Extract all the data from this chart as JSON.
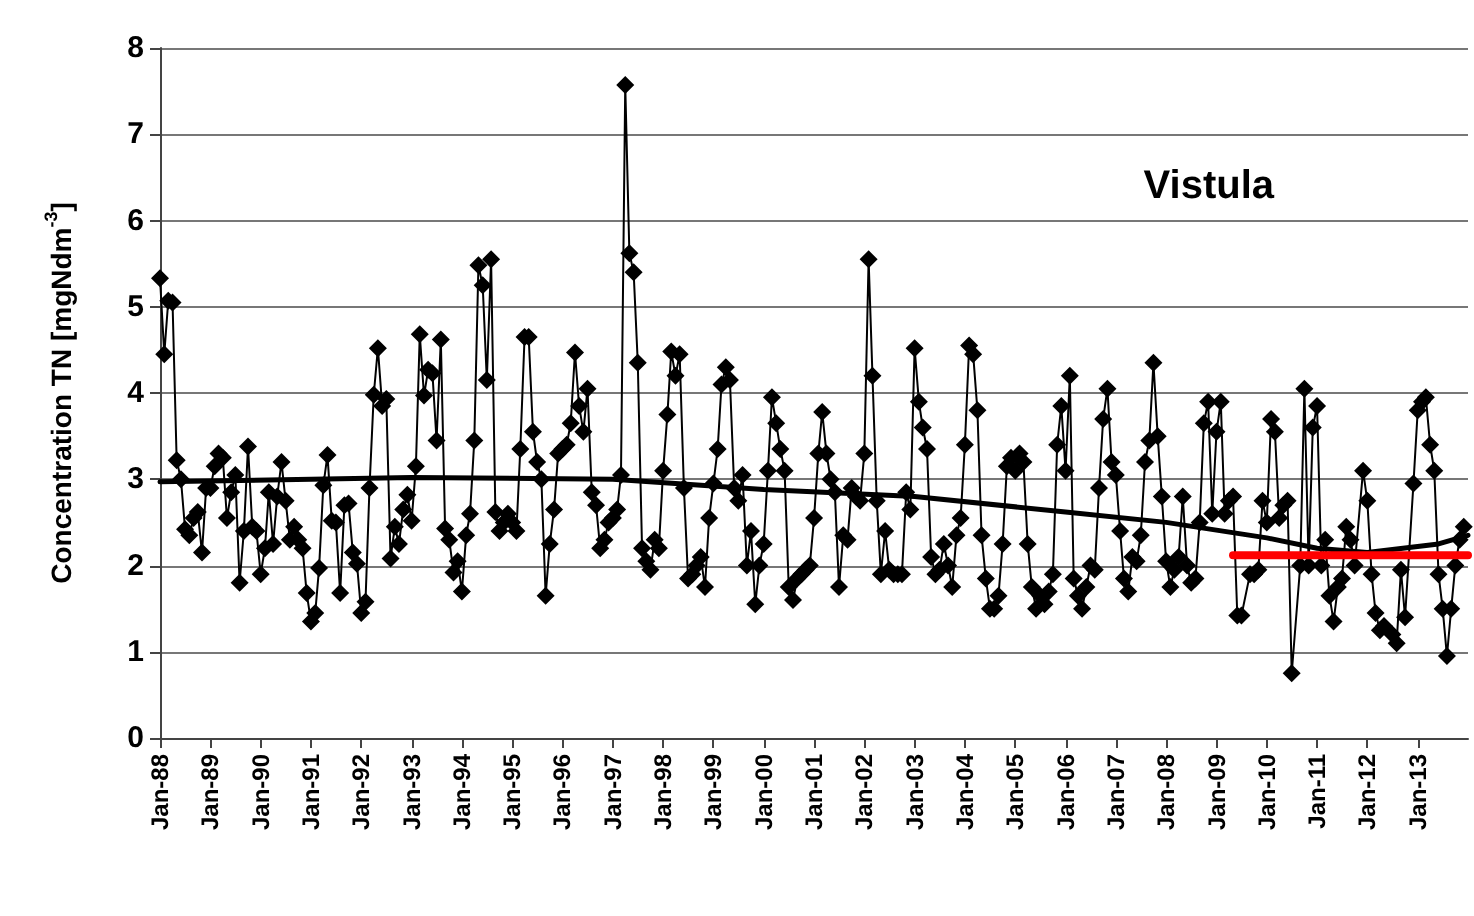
{
  "chart_data": {
    "type": "line",
    "title": "Vistula",
    "ylabel": "Concentration TN [mgNdm$^{-3}$]",
    "xlim": [
      "1988-01",
      "2014-01"
    ],
    "ylim": [
      0,
      8
    ],
    "yticks": [
      0,
      1,
      2,
      3,
      4,
      5,
      6,
      7,
      8
    ],
    "xticks": [
      {
        "value": "1988-01",
        "label": "Jan-88"
      },
      {
        "value": "1989-01",
        "label": "Jan-89"
      },
      {
        "value": "1990-01",
        "label": "Jan-90"
      },
      {
        "value": "1991-01",
        "label": "Jan-91"
      },
      {
        "value": "1992-01",
        "label": "Jan-92"
      },
      {
        "value": "1993-01",
        "label": "Jan-93"
      },
      {
        "value": "1994-01",
        "label": "Jan-94"
      },
      {
        "value": "1995-01",
        "label": "Jan-95"
      },
      {
        "value": "1996-01",
        "label": "Jan-96"
      },
      {
        "value": "1997-01",
        "label": "Jan-97"
      },
      {
        "value": "1998-01",
        "label": "Jan-98"
      },
      {
        "value": "1999-01",
        "label": "Jan-99"
      },
      {
        "value": "2000-01",
        "label": "Jan-00"
      },
      {
        "value": "2001-01",
        "label": "Jan-01"
      },
      {
        "value": "2002-01",
        "label": "Jan-02"
      },
      {
        "value": "2003-01",
        "label": "Jan-03"
      },
      {
        "value": "2004-01",
        "label": "Jan-04"
      },
      {
        "value": "2005-01",
        "label": "Jan-05"
      },
      {
        "value": "2006-01",
        "label": "Jan-06"
      },
      {
        "value": "2007-01",
        "label": "Jan-07"
      },
      {
        "value": "2008-01",
        "label": "Jan-08"
      },
      {
        "value": "2009-01",
        "label": "Jan-09"
      },
      {
        "value": "2010-01",
        "label": "Jan-10"
      },
      {
        "value": "2011-01",
        "label": "Jan-11"
      },
      {
        "value": "2012-01",
        "label": "Jan-12"
      },
      {
        "value": "2013-01",
        "label": "Jan-13"
      }
    ],
    "grid": "y",
    "marker": "diamond",
    "line_style": "solid",
    "series": [
      {
        "color": "#000000",
        "x": [
          "1988-01",
          "1988-02",
          "1988-03",
          "1988-04",
          "1988-05",
          "1988-06",
          "1988-07",
          "1988-08",
          "1988-09",
          "1988-10",
          "1988-11",
          "1988-12",
          "1989-01",
          "1989-02",
          "1989-03",
          "1989-04",
          "1989-05",
          "1989-06",
          "1989-07",
          "1989-08",
          "1989-09",
          "1989-10",
          "1989-11",
          "1989-12",
          "1990-01",
          "1990-02",
          "1990-03",
          "1990-04",
          "1990-05",
          "1990-06",
          "1990-07",
          "1990-08",
          "1990-09",
          "1990-10",
          "1990-11",
          "1990-12",
          "1991-01",
          "1991-02",
          "1991-03",
          "1991-04",
          "1991-05",
          "1991-06",
          "1991-07",
          "1991-08",
          "1991-09",
          "1991-10",
          "1991-11",
          "1991-12",
          "1992-01",
          "1992-02",
          "1992-03",
          "1992-04",
          "1992-05",
          "1992-06",
          "1992-07",
          "1992-08",
          "1992-09",
          "1992-10",
          "1992-11",
          "1992-12",
          "1993-01",
          "1993-02",
          "1993-03",
          "1993-04",
          "1993-05",
          "1993-06",
          "1993-07",
          "1993-08",
          "1993-09",
          "1993-10",
          "1993-11",
          "1993-12",
          "1994-01",
          "1994-02",
          "1994-03",
          "1994-04",
          "1994-05",
          "1994-06",
          "1994-07",
          "1994-08",
          "1994-09",
          "1994-10",
          "1994-11",
          "1994-12",
          "1995-01",
          "1995-02",
          "1995-03",
          "1995-04",
          "1995-05",
          "1995-06",
          "1995-07",
          "1995-08",
          "1995-09",
          "1995-10",
          "1995-11",
          "1995-12",
          "1996-01",
          "1996-02",
          "1996-03",
          "1996-04",
          "1996-05",
          "1996-06",
          "1996-07",
          "1996-08",
          "1996-09",
          "1996-10",
          "1996-11",
          "1996-12",
          "1997-01",
          "1997-02",
          "1997-03",
          "1997-04",
          "1997-05",
          "1997-06",
          "1997-07",
          "1997-08",
          "1997-09",
          "1997-10",
          "1997-11",
          "1997-12",
          "1998-01",
          "1998-02",
          "1998-03",
          "1998-04",
          "1998-05",
          "1998-06",
          "1998-07",
          "1998-08",
          "1998-09",
          "1998-10",
          "1998-11",
          "1998-12",
          "1999-01",
          "1999-02",
          "1999-03",
          "1999-04",
          "1999-05",
          "1999-06",
          "1999-07",
          "1999-08",
          "1999-09",
          "1999-10",
          "1999-11",
          "1999-12",
          "2000-01",
          "2000-02",
          "2000-03",
          "2000-04",
          "2000-05",
          "2000-06",
          "2000-07",
          "2000-08",
          "2000-09",
          "2000-10",
          "2000-11",
          "2000-12",
          "2001-01",
          "2001-02",
          "2001-03",
          "2001-04",
          "2001-05",
          "2001-06",
          "2001-07",
          "2001-08",
          "2001-09",
          "2001-10",
          "2001-11",
          "2001-12",
          "2002-01",
          "2002-02",
          "2002-03",
          "2002-04",
          "2002-05",
          "2002-06",
          "2002-07",
          "2002-08",
          "2002-09",
          "2002-10",
          "2002-11",
          "2002-12",
          "2003-01",
          "2003-02",
          "2003-03",
          "2003-04",
          "2003-05",
          "2003-06",
          "2003-07",
          "2003-08",
          "2003-09",
          "2003-10",
          "2003-11",
          "2003-12",
          "2004-01",
          "2004-02",
          "2004-03",
          "2004-04",
          "2004-05",
          "2004-06",
          "2004-07",
          "2004-08",
          "2004-09",
          "2004-10",
          "2004-11",
          "2004-12",
          "2005-01",
          "2005-02",
          "2005-03",
          "2005-04",
          "2005-05",
          "2005-06",
          "2005-07",
          "2005-08",
          "2005-09",
          "2005-10",
          "2005-11",
          "2005-12",
          "2006-01",
          "2006-02",
          "2006-03",
          "2006-04",
          "2006-05",
          "2006-06",
          "2006-07",
          "2006-08",
          "2006-09",
          "2006-10",
          "2006-11",
          "2006-12",
          "2007-01",
          "2007-02",
          "2007-03",
          "2007-04",
          "2007-05",
          "2007-06",
          "2007-07",
          "2007-08",
          "2007-09",
          "2007-10",
          "2007-11",
          "2007-12",
          "2008-01",
          "2008-02",
          "2008-03",
          "2008-04",
          "2008-05",
          "2008-06",
          "2008-07",
          "2008-08",
          "2008-09",
          "2008-10",
          "2008-11",
          "2008-12",
          "2009-01",
          "2009-02",
          "2009-03",
          "2009-04",
          "2009-05",
          "2009-06",
          "2009-07",
          "2009-09",
          "2009-10",
          "2009-11",
          "2009-12",
          "2010-01",
          "2010-02",
          "2010-03",
          "2010-04",
          "2010-05",
          "2010-06",
          "2010-07",
          "2010-09",
          "2010-10",
          "2010-11",
          "2010-12",
          "2011-01",
          "2011-02",
          "2011-03",
          "2011-04",
          "2011-05",
          "2011-06",
          "2011-07",
          "2011-08",
          "2011-09",
          "2011-10",
          "2011-12",
          "2012-01",
          "2012-02",
          "2012-03",
          "2012-04",
          "2012-05",
          "2012-07",
          "2012-08",
          "2012-09",
          "2012-10",
          "2012-12",
          "2013-01",
          "2013-02",
          "2013-03",
          "2013-04",
          "2013-05",
          "2013-06",
          "2013-07",
          "2013-08",
          "2013-09",
          "2013-10",
          "2013-11",
          "2013-12"
        ],
        "values": [
          5.33,
          4.45,
          5.07,
          5.05,
          3.22,
          3.0,
          2.42,
          2.35,
          2.55,
          2.62,
          2.15,
          2.9,
          2.9,
          3.15,
          3.3,
          3.25,
          2.55,
          2.85,
          3.05,
          1.8,
          2.4,
          3.38,
          2.45,
          2.4,
          1.9,
          2.2,
          2.85,
          2.25,
          2.8,
          3.2,
          2.75,
          2.3,
          2.45,
          2.3,
          2.2,
          1.68,
          1.35,
          1.45,
          1.97,
          2.93,
          3.28,
          2.52,
          2.5,
          1.68,
          2.7,
          2.72,
          2.15,
          2.02,
          1.45,
          1.58,
          2.9,
          3.98,
          4.52,
          3.85,
          3.93,
          2.08,
          2.45,
          2.25,
          2.65,
          2.82,
          2.52,
          3.15,
          4.68,
          3.97,
          4.27,
          4.23,
          3.45,
          4.62,
          2.43,
          2.3,
          1.92,
          2.05,
          1.7,
          2.35,
          2.6,
          3.45,
          5.48,
          5.25,
          4.15,
          5.55,
          2.62,
          2.4,
          2.5,
          2.6,
          2.5,
          2.4,
          3.35,
          4.65,
          4.65,
          3.55,
          3.2,
          3.0,
          1.65,
          2.25,
          2.65,
          3.3,
          3.35,
          3.4,
          3.65,
          4.47,
          3.85,
          3.55,
          4.05,
          2.85,
          2.7,
          2.2,
          2.3,
          2.5,
          2.55,
          2.65,
          3.05,
          7.57,
          5.62,
          5.4,
          4.35,
          2.2,
          2.05,
          1.95,
          2.3,
          2.2,
          3.1,
          3.75,
          4.48,
          4.2,
          4.45,
          2.9,
          1.85,
          1.9,
          2.0,
          2.1,
          1.75,
          2.55,
          2.95,
          3.35,
          4.1,
          4.3,
          4.15,
          2.9,
          2.75,
          3.05,
          2.0,
          2.4,
          1.55,
          2.0,
          2.25,
          3.1,
          3.95,
          3.65,
          3.35,
          3.1,
          1.75,
          1.6,
          1.85,
          1.9,
          1.95,
          2.0,
          2.55,
          3.3,
          3.78,
          3.3,
          3.0,
          2.85,
          1.75,
          2.35,
          2.3,
          2.9,
          2.8,
          2.75,
          3.3,
          5.55,
          4.2,
          2.75,
          1.9,
          2.4,
          1.95,
          1.9,
          1.9,
          1.9,
          2.85,
          2.65,
          4.52,
          3.9,
          3.6,
          3.35,
          2.1,
          1.9,
          1.95,
          2.25,
          2.0,
          1.75,
          2.35,
          2.55,
          3.4,
          4.55,
          4.45,
          3.8,
          2.35,
          1.85,
          1.5,
          1.5,
          1.65,
          2.25,
          3.15,
          3.25,
          3.1,
          3.3,
          3.2,
          2.25,
          1.75,
          1.5,
          1.65,
          1.55,
          1.7,
          1.9,
          3.4,
          3.85,
          3.1,
          4.2,
          1.85,
          1.65,
          1.5,
          1.75,
          2.0,
          1.95,
          2.9,
          3.7,
          4.05,
          3.2,
          3.05,
          2.4,
          1.85,
          1.7,
          2.1,
          2.05,
          2.35,
          3.2,
          3.45,
          4.35,
          3.5,
          2.8,
          2.05,
          1.75,
          1.95,
          2.1,
          2.8,
          2.0,
          1.8,
          1.85,
          2.5,
          3.65,
          3.9,
          2.6,
          3.55,
          3.9,
          2.6,
          2.75,
          2.8,
          1.42,
          1.42,
          1.9,
          1.9,
          1.95,
          2.75,
          2.5,
          3.7,
          3.55,
          2.55,
          2.7,
          2.75,
          0.75,
          2.0,
          4.05,
          2.0,
          3.6,
          3.85,
          2.0,
          2.3,
          1.65,
          1.35,
          1.75,
          1.85,
          2.45,
          2.3,
          2.0,
          3.1,
          2.75,
          1.9,
          1.45,
          1.25,
          1.3,
          1.2,
          1.1,
          1.95,
          1.4,
          2.95,
          3.8,
          3.9,
          3.95,
          3.4,
          3.1,
          1.9,
          1.5,
          0.95,
          1.5,
          2.0,
          2.3,
          2.45
        ]
      },
      {
        "color": "#000000",
        "marker": "none",
        "x": [
          "1988-01",
          "1993-01",
          "1997-01",
          "2000-01",
          "2003-01",
          "2006-01",
          "2008-01",
          "2010-01",
          "2011-01",
          "2012-01",
          "2013-06",
          "2014-01"
        ],
        "values": [
          2.97,
          3.02,
          3.0,
          2.88,
          2.8,
          2.62,
          2.5,
          2.32,
          2.2,
          2.15,
          2.25,
          2.35
        ]
      },
      {
        "color": "#ff0000",
        "marker": "none",
        "x": [
          "2009-05",
          "2014-01"
        ],
        "values": [
          2.12,
          2.12
        ]
      }
    ]
  }
}
